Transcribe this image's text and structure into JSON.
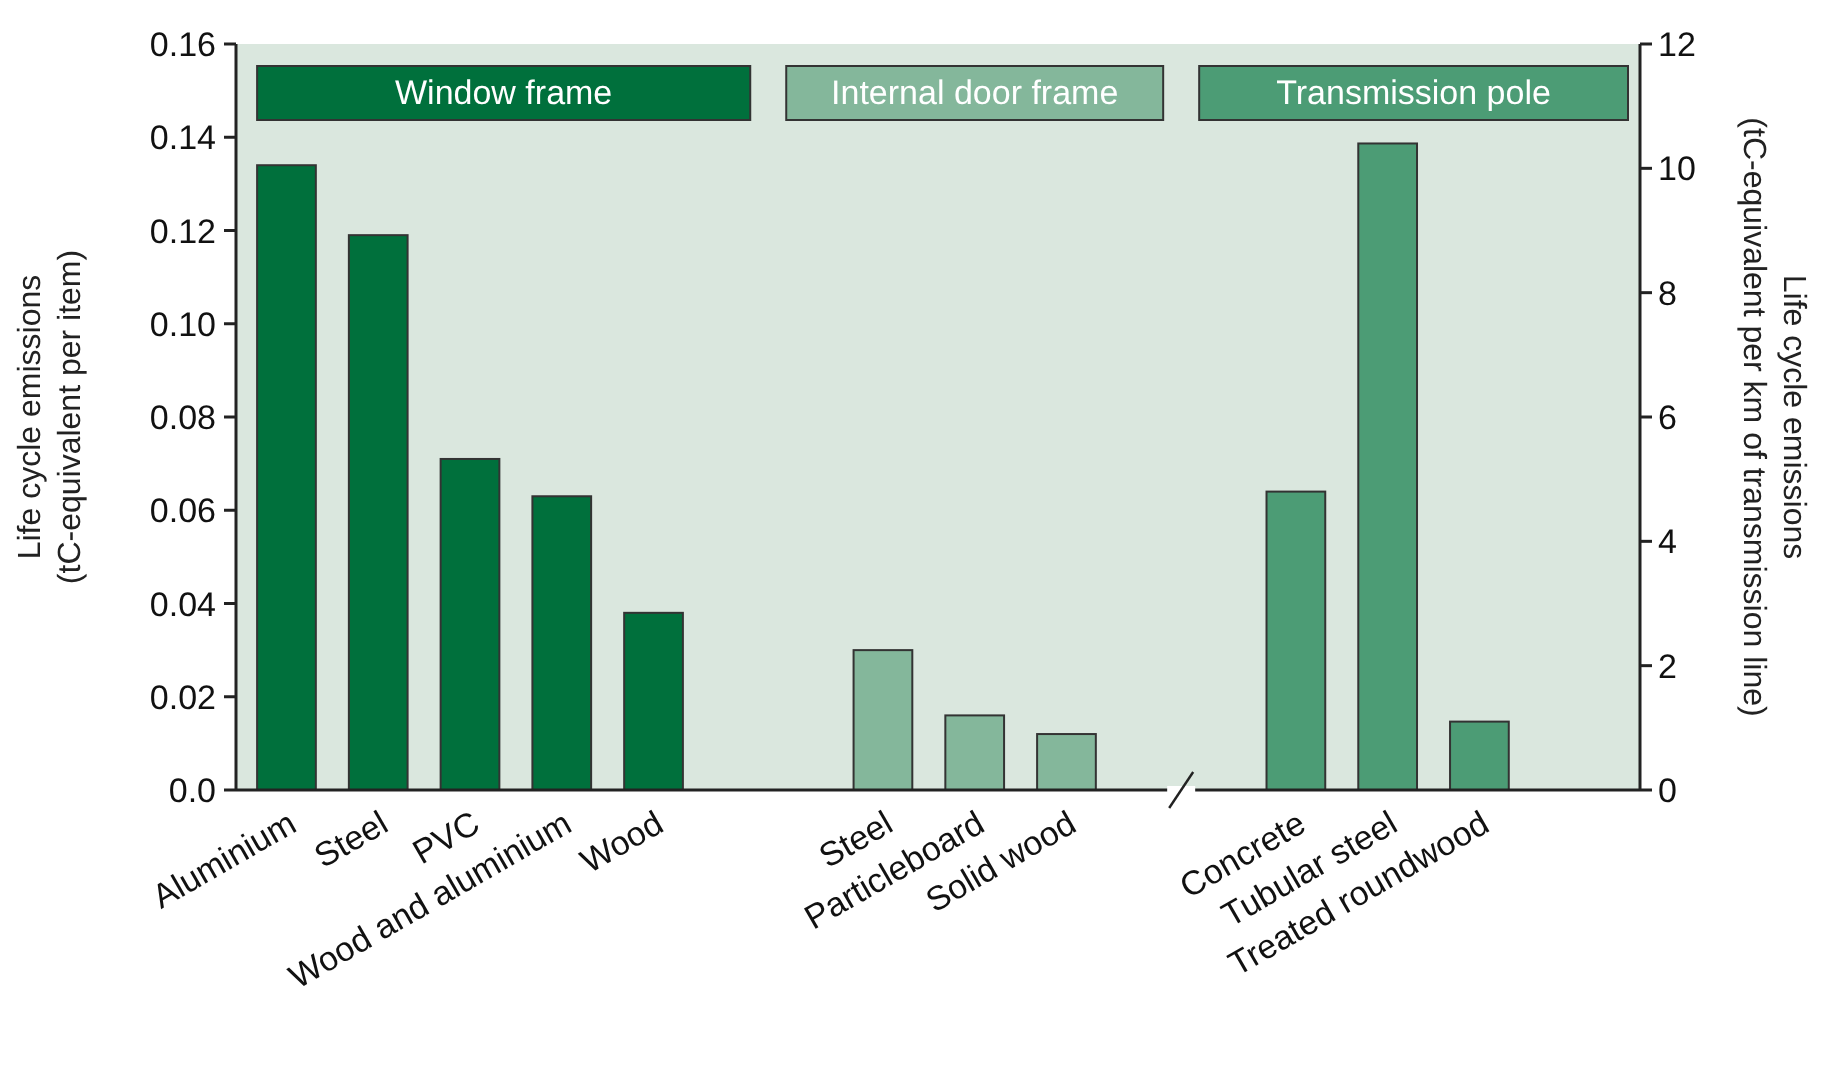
{
  "chart_data": {
    "type": "bar",
    "ylabel": "Life cycle emissions\n(tC-equivalent per item)",
    "y2label": "Life cycle emissions\n(tC-equivalent per km of transmission line)",
    "categories": [
      "Aluminium",
      "Steel",
      "PVC",
      "Wood and aluminium",
      "Wood",
      "Steel",
      "Particleboard",
      "Solid wood",
      "Concrete",
      "Tubular steel",
      "Treated roundwood"
    ],
    "series": [
      {
        "name": "Window frame",
        "color": "#00703c",
        "values": [
          0.134,
          0.119,
          0.071,
          0.063,
          0.038,
          null,
          null,
          null,
          null,
          null,
          null
        ]
      },
      {
        "name": "Internal door frame",
        "color": "#84b79b",
        "values": [
          null,
          null,
          null,
          null,
          null,
          0.03,
          0.016,
          0.012,
          null,
          null,
          null
        ]
      },
      {
        "name": "Transmission pole",
        "color": "#4c9c75",
        "axis": "y2",
        "values": [
          null,
          null,
          null,
          null,
          null,
          null,
          null,
          null,
          4.8,
          10.4,
          1.1
        ]
      }
    ],
    "ylim": [
      0,
      0.16
    ],
    "yticks": [
      {
        "value": 0,
        "label": "0.0"
      },
      0.02,
      0.04,
      0.06,
      0.08,
      {
        "value": 0.1,
        "label": "0.10"
      },
      0.12,
      0.14,
      0.16
    ],
    "y2lim": [
      0,
      12
    ],
    "y2ticks": [
      0,
      2,
      4,
      6,
      8,
      10,
      12
    ],
    "legend": "top",
    "grid": false
  }
}
